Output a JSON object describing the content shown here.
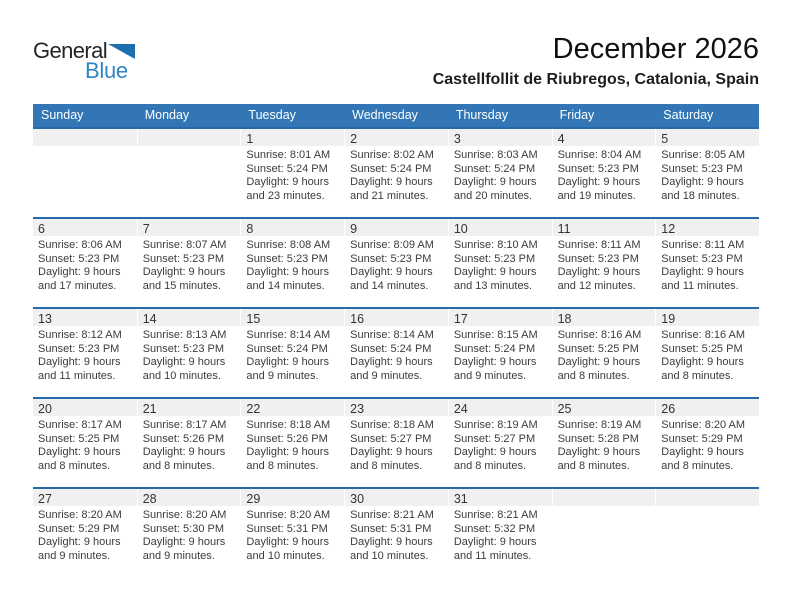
{
  "logo": {
    "general": "General",
    "blue": "Blue"
  },
  "header": {
    "title": "December 2026",
    "subtitle": "Castellfollit de Riubregos, Catalonia, Spain"
  },
  "weekdays": [
    "Sunday",
    "Monday",
    "Tuesday",
    "Wednesday",
    "Thursday",
    "Friday",
    "Saturday"
  ],
  "weeks": [
    [
      null,
      null,
      {
        "day": "1",
        "lines": [
          "Sunrise: 8:01 AM",
          "Sunset: 5:24 PM",
          "Daylight: 9 hours",
          "and 23 minutes."
        ]
      },
      {
        "day": "2",
        "lines": [
          "Sunrise: 8:02 AM",
          "Sunset: 5:24 PM",
          "Daylight: 9 hours",
          "and 21 minutes."
        ]
      },
      {
        "day": "3",
        "lines": [
          "Sunrise: 8:03 AM",
          "Sunset: 5:24 PM",
          "Daylight: 9 hours",
          "and 20 minutes."
        ]
      },
      {
        "day": "4",
        "lines": [
          "Sunrise: 8:04 AM",
          "Sunset: 5:23 PM",
          "Daylight: 9 hours",
          "and 19 minutes."
        ]
      },
      {
        "day": "5",
        "lines": [
          "Sunrise: 8:05 AM",
          "Sunset: 5:23 PM",
          "Daylight: 9 hours",
          "and 18 minutes."
        ]
      }
    ],
    [
      {
        "day": "6",
        "lines": [
          "Sunrise: 8:06 AM",
          "Sunset: 5:23 PM",
          "Daylight: 9 hours",
          "and 17 minutes."
        ]
      },
      {
        "day": "7",
        "lines": [
          "Sunrise: 8:07 AM",
          "Sunset: 5:23 PM",
          "Daylight: 9 hours",
          "and 15 minutes."
        ]
      },
      {
        "day": "8",
        "lines": [
          "Sunrise: 8:08 AM",
          "Sunset: 5:23 PM",
          "Daylight: 9 hours",
          "and 14 minutes."
        ]
      },
      {
        "day": "9",
        "lines": [
          "Sunrise: 8:09 AM",
          "Sunset: 5:23 PM",
          "Daylight: 9 hours",
          "and 14 minutes."
        ]
      },
      {
        "day": "10",
        "lines": [
          "Sunrise: 8:10 AM",
          "Sunset: 5:23 PM",
          "Daylight: 9 hours",
          "and 13 minutes."
        ]
      },
      {
        "day": "11",
        "lines": [
          "Sunrise: 8:11 AM",
          "Sunset: 5:23 PM",
          "Daylight: 9 hours",
          "and 12 minutes."
        ]
      },
      {
        "day": "12",
        "lines": [
          "Sunrise: 8:11 AM",
          "Sunset: 5:23 PM",
          "Daylight: 9 hours",
          "and 11 minutes."
        ]
      }
    ],
    [
      {
        "day": "13",
        "lines": [
          "Sunrise: 8:12 AM",
          "Sunset: 5:23 PM",
          "Daylight: 9 hours",
          "and 11 minutes."
        ]
      },
      {
        "day": "14",
        "lines": [
          "Sunrise: 8:13 AM",
          "Sunset: 5:23 PM",
          "Daylight: 9 hours",
          "and 10 minutes."
        ]
      },
      {
        "day": "15",
        "lines": [
          "Sunrise: 8:14 AM",
          "Sunset: 5:24 PM",
          "Daylight: 9 hours",
          "and 9 minutes."
        ]
      },
      {
        "day": "16",
        "lines": [
          "Sunrise: 8:14 AM",
          "Sunset: 5:24 PM",
          "Daylight: 9 hours",
          "and 9 minutes."
        ]
      },
      {
        "day": "17",
        "lines": [
          "Sunrise: 8:15 AM",
          "Sunset: 5:24 PM",
          "Daylight: 9 hours",
          "and 9 minutes."
        ]
      },
      {
        "day": "18",
        "lines": [
          "Sunrise: 8:16 AM",
          "Sunset: 5:25 PM",
          "Daylight: 9 hours",
          "and 8 minutes."
        ]
      },
      {
        "day": "19",
        "lines": [
          "Sunrise: 8:16 AM",
          "Sunset: 5:25 PM",
          "Daylight: 9 hours",
          "and 8 minutes."
        ]
      }
    ],
    [
      {
        "day": "20",
        "lines": [
          "Sunrise: 8:17 AM",
          "Sunset: 5:25 PM",
          "Daylight: 9 hours",
          "and 8 minutes."
        ]
      },
      {
        "day": "21",
        "lines": [
          "Sunrise: 8:17 AM",
          "Sunset: 5:26 PM",
          "Daylight: 9 hours",
          "and 8 minutes."
        ]
      },
      {
        "day": "22",
        "lines": [
          "Sunrise: 8:18 AM",
          "Sunset: 5:26 PM",
          "Daylight: 9 hours",
          "and 8 minutes."
        ]
      },
      {
        "day": "23",
        "lines": [
          "Sunrise: 8:18 AM",
          "Sunset: 5:27 PM",
          "Daylight: 9 hours",
          "and 8 minutes."
        ]
      },
      {
        "day": "24",
        "lines": [
          "Sunrise: 8:19 AM",
          "Sunset: 5:27 PM",
          "Daylight: 9 hours",
          "and 8 minutes."
        ]
      },
      {
        "day": "25",
        "lines": [
          "Sunrise: 8:19 AM",
          "Sunset: 5:28 PM",
          "Daylight: 9 hours",
          "and 8 minutes."
        ]
      },
      {
        "day": "26",
        "lines": [
          "Sunrise: 8:20 AM",
          "Sunset: 5:29 PM",
          "Daylight: 9 hours",
          "and 8 minutes."
        ]
      }
    ],
    [
      {
        "day": "27",
        "lines": [
          "Sunrise: 8:20 AM",
          "Sunset: 5:29 PM",
          "Daylight: 9 hours",
          "and 9 minutes."
        ]
      },
      {
        "day": "28",
        "lines": [
          "Sunrise: 8:20 AM",
          "Sunset: 5:30 PM",
          "Daylight: 9 hours",
          "and 9 minutes."
        ]
      },
      {
        "day": "29",
        "lines": [
          "Sunrise: 8:20 AM",
          "Sunset: 5:31 PM",
          "Daylight: 9 hours",
          "and 10 minutes."
        ]
      },
      {
        "day": "30",
        "lines": [
          "Sunrise: 8:21 AM",
          "Sunset: 5:31 PM",
          "Daylight: 9 hours",
          "and 10 minutes."
        ]
      },
      {
        "day": "31",
        "lines": [
          "Sunrise: 8:21 AM",
          "Sunset: 5:32 PM",
          "Daylight: 9 hours",
          "and 11 minutes."
        ]
      },
      null,
      null
    ]
  ],
  "colors": {
    "header_bg": "#3276b5",
    "week_border": "#2569ac",
    "band_bg": "#f0f0f0",
    "logo_blue": "#2e86c5",
    "triangle_blue": "#1e6fae"
  }
}
